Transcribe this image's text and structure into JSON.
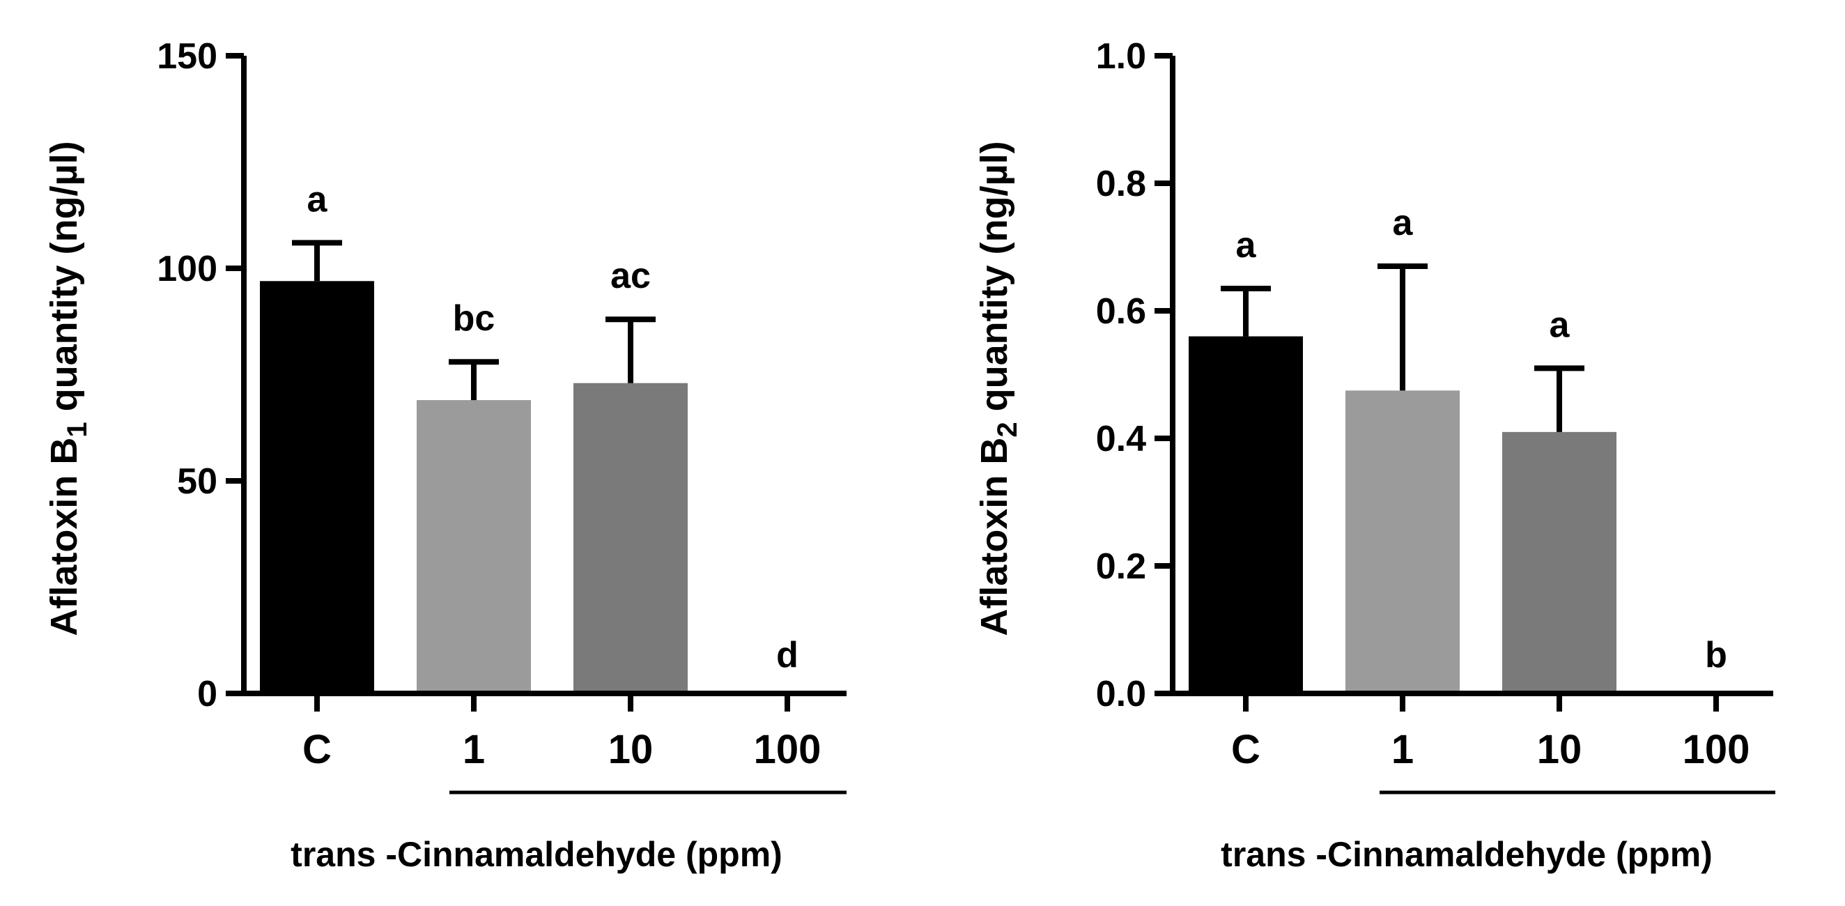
{
  "chart_data": [
    {
      "type": "bar",
      "title": "",
      "ylabel": {
        "main": "Aflatoxin B",
        "sub": "1",
        "tail": " quantity (ng/µl)"
      },
      "xlabel": "trans -Cinnamaldehyde (ppm)",
      "categories": [
        "C",
        "1",
        "10",
        "100"
      ],
      "values": [
        97,
        69,
        73,
        0
      ],
      "errors": [
        9,
        9,
        15,
        0
      ],
      "colors": [
        "#000000",
        "#9b9b9b",
        "#7a7a7a",
        "#ffffff"
      ],
      "significance": [
        "a",
        "bc",
        "ac",
        "d"
      ],
      "ylim": [
        0,
        150
      ],
      "yticks": [
        0,
        50,
        100,
        150
      ],
      "ytick_labels": [
        "0",
        "50",
        "100",
        "150"
      ]
    },
    {
      "type": "bar",
      "title": "",
      "ylabel": {
        "main": "Aflatoxin B",
        "sub": "2",
        "tail": " quantity (ng/µl)"
      },
      "xlabel": "trans -Cinnamaldehyde (ppm)",
      "categories": [
        "C",
        "1",
        "10",
        "100"
      ],
      "values": [
        0.56,
        0.475,
        0.41,
        0
      ],
      "errors": [
        0.075,
        0.195,
        0.1,
        0
      ],
      "colors": [
        "#000000",
        "#9b9b9b",
        "#7a7a7a",
        "#ffffff"
      ],
      "significance": [
        "a",
        "a",
        "a",
        "b"
      ],
      "ylim": [
        0,
        1.0
      ],
      "yticks": [
        0,
        0.2,
        0.4,
        0.6,
        0.8,
        1.0
      ],
      "ytick_labels": [
        "0.0",
        "0.2",
        "0.4",
        "0.6",
        "0.8",
        "1.0"
      ]
    }
  ]
}
